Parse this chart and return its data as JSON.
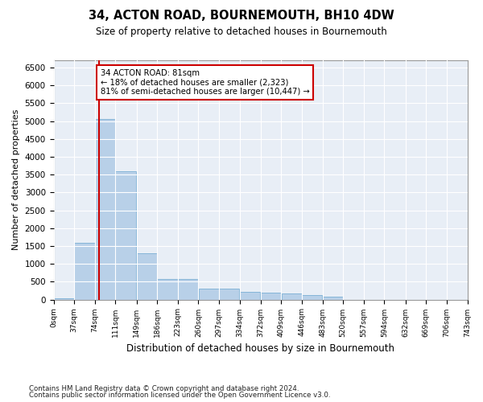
{
  "title1": "34, ACTON ROAD, BOURNEMOUTH, BH10 4DW",
  "title2": "Size of property relative to detached houses in Bournemouth",
  "xlabel": "Distribution of detached houses by size in Bournemouth",
  "ylabel": "Number of detached properties",
  "bar_color": "#b8d0e8",
  "bar_edge_color": "#7aafd4",
  "background_color": "#e8eef6",
  "grid_color": "#ffffff",
  "property_sqm": 81,
  "annotation_title": "34 ACTON ROAD: 81sqm",
  "annotation_line1": "← 18% of detached houses are smaller (2,323)",
  "annotation_line2": "81% of semi-detached houses are larger (10,447) →",
  "vline_color": "#cc0000",
  "annotation_box_color": "#ffffff",
  "annotation_box_edge": "#cc0000",
  "bin_edges": [
    0,
    37,
    74,
    111,
    149,
    186,
    223,
    260,
    297,
    334,
    372,
    409,
    446,
    483,
    520,
    557,
    594,
    632,
    669,
    706,
    743
  ],
  "bin_labels": [
    "0sqm",
    "37sqm",
    "74sqm",
    "111sqm",
    "149sqm",
    "186sqm",
    "223sqm",
    "260sqm",
    "297sqm",
    "334sqm",
    "372sqm",
    "409sqm",
    "446sqm",
    "483sqm",
    "520sqm",
    "557sqm",
    "594sqm",
    "632sqm",
    "669sqm",
    "706sqm",
    "743sqm"
  ],
  "counts": [
    45,
    1600,
    5050,
    3600,
    1300,
    580,
    570,
    310,
    295,
    225,
    195,
    165,
    115,
    75,
    0,
    0,
    0,
    0,
    0,
    0
  ],
  "ylim": [
    0,
    6700
  ],
  "yticks": [
    0,
    500,
    1000,
    1500,
    2000,
    2500,
    3000,
    3500,
    4000,
    4500,
    5000,
    5500,
    6000,
    6500
  ],
  "footer1": "Contains HM Land Registry data © Crown copyright and database right 2024.",
  "footer2": "Contains public sector information licensed under the Open Government Licence v3.0."
}
